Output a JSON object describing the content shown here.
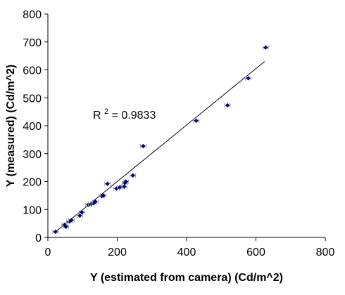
{
  "chart_data": {
    "type": "scatter",
    "xlabel": "Y (estimated from camera) (Cd/m^2)",
    "ylabel": "Y (measured) (Cd/m^2)",
    "xlim": [
      0,
      800
    ],
    "ylim": [
      0,
      800
    ],
    "x_ticks": [
      "0",
      "200",
      "400",
      "600",
      "800"
    ],
    "y_ticks": [
      "0",
      "100",
      "200",
      "300",
      "400",
      "500",
      "600",
      "700",
      "800"
    ],
    "grid": false,
    "legend": "none",
    "marker_color": "#000080",
    "error_bar_color": "#9a9a9a",
    "trendline_color": "#000000",
    "annotation": {
      "prefix": "R",
      "superscript": "2",
      "suffix": " = 0.9833"
    },
    "trendline": {
      "x": [
        20,
        625
      ],
      "y": [
        18,
        630
      ]
    },
    "series": [
      {
        "x_error": 8,
        "points": [
          {
            "x": 22,
            "y": 20
          },
          {
            "x": 48,
            "y": 45
          },
          {
            "x": 52,
            "y": 38
          },
          {
            "x": 62,
            "y": 57
          },
          {
            "x": 68,
            "y": 62
          },
          {
            "x": 92,
            "y": 78
          },
          {
            "x": 98,
            "y": 90
          },
          {
            "x": 117,
            "y": 117
          },
          {
            "x": 125,
            "y": 120
          },
          {
            "x": 132,
            "y": 123
          },
          {
            "x": 137,
            "y": 128
          },
          {
            "x": 155,
            "y": 148
          },
          {
            "x": 160,
            "y": 150
          },
          {
            "x": 172,
            "y": 192
          },
          {
            "x": 198,
            "y": 175
          },
          {
            "x": 208,
            "y": 180
          },
          {
            "x": 220,
            "y": 182
          },
          {
            "x": 222,
            "y": 195
          },
          {
            "x": 225,
            "y": 200
          },
          {
            "x": 245,
            "y": 222
          },
          {
            "x": 275,
            "y": 327
          },
          {
            "x": 428,
            "y": 418
          },
          {
            "x": 518,
            "y": 473
          },
          {
            "x": 578,
            "y": 570
          },
          {
            "x": 628,
            "y": 680
          }
        ]
      }
    ]
  }
}
